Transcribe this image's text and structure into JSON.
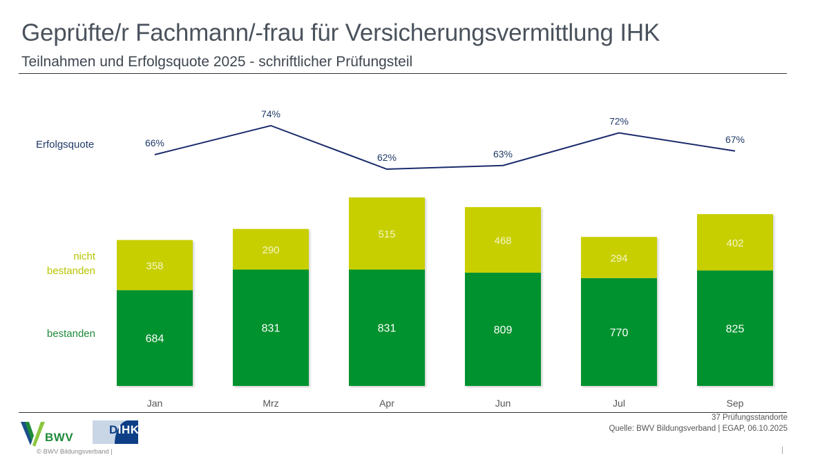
{
  "header": {
    "title": "Geprüfte/r Fachmann/-frau für Versicherungsvermittlung IHK",
    "subtitle": "Teilnahmen und Erfolgsquote 2025 - schriftlicher Prüfungsteil"
  },
  "legend": {
    "erfolgsquote": "Erfolgsquote",
    "nicht_bestanden_line1": "nicht",
    "nicht_bestanden_line2": "bestanden",
    "bestanden": "bestanden"
  },
  "colors": {
    "bestanden": "#00922f",
    "nicht_bestanden": "#c8cf00",
    "line": "#1a2a6c",
    "label_erfolg": "#1f3a68",
    "label_nicht": "#b8c400",
    "label_best": "#1e8a3a"
  },
  "chart_data": {
    "type": "bar",
    "stacked": true,
    "title": "Geprüfte/r Fachmann/-frau für Versicherungsvermittlung IHK",
    "subtitle": "Teilnahmen und Erfolgsquote 2025 - schriftlicher Prüfungsteil",
    "categories": [
      "Jan",
      "Mrz",
      "Apr",
      "Jun",
      "Jul",
      "Sep"
    ],
    "series": [
      {
        "name": "bestanden",
        "values": [
          684,
          831,
          831,
          809,
          770,
          825
        ]
      },
      {
        "name": "nicht bestanden",
        "values": [
          358,
          290,
          515,
          468,
          294,
          402
        ]
      }
    ],
    "line_series": {
      "name": "Erfolgsquote",
      "values": [
        66,
        74,
        62,
        63,
        72,
        67
      ],
      "labels": [
        "66%",
        "74%",
        "62%",
        "63%",
        "72%",
        "67%"
      ],
      "unit": "%"
    },
    "xlabel": "",
    "ylabel": "",
    "ylim": [
      0,
      1346
    ],
    "grid": false,
    "legend_placement": "left"
  },
  "footer": {
    "note_line1": "37 Prüfungsstandorte",
    "note_line2": "Quelle: BWV Bildungsverband | EGAP, 06.10.2025",
    "copyright": "© BWV Bildungsverband |",
    "pipe": "|",
    "bwv_logo_text": "BWV",
    "dihk_logo_text_d": "D",
    "dihk_logo_text_rest": "IHK"
  }
}
